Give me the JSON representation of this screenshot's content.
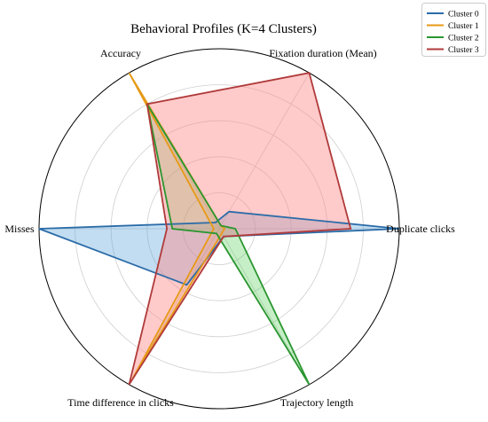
{
  "chart_data": {
    "type": "radar",
    "title": "Behavioral Profiles (K=4 Clusters)",
    "axes": [
      "Duplicate clicks",
      "Fixation duration (Mean)",
      "Accuracy",
      "Misses",
      "Time difference in clicks",
      "Trajectory length"
    ],
    "rlim": [
      0,
      1
    ],
    "grid": true,
    "legend_position": "top-right",
    "series": [
      {
        "name": "Cluster 0",
        "color": "#2b6ca8",
        "fill": "#4f9fd8",
        "fill_opacity": 0.35,
        "values": [
          1.0,
          0.11,
          0.04,
          1.0,
          0.36,
          0.05
        ]
      },
      {
        "name": "Cluster 1",
        "color": "#e69a16",
        "fill": "#f0b13c",
        "fill_opacity": 0.2,
        "values": [
          0.03,
          0.02,
          1.0,
          0.03,
          0.96,
          0.03
        ]
      },
      {
        "name": "Cluster 2",
        "color": "#2a9630",
        "fill": "#5fd25f",
        "fill_opacity": 0.35,
        "values": [
          0.09,
          0.02,
          0.8,
          0.26,
          0.03,
          1.0
        ]
      },
      {
        "name": "Cluster 3",
        "color": "#b03a3a",
        "fill": "#ff8a8a",
        "fill_opacity": 0.45,
        "values": [
          0.73,
          1.0,
          0.8,
          0.29,
          1.0,
          0.05
        ]
      }
    ]
  }
}
